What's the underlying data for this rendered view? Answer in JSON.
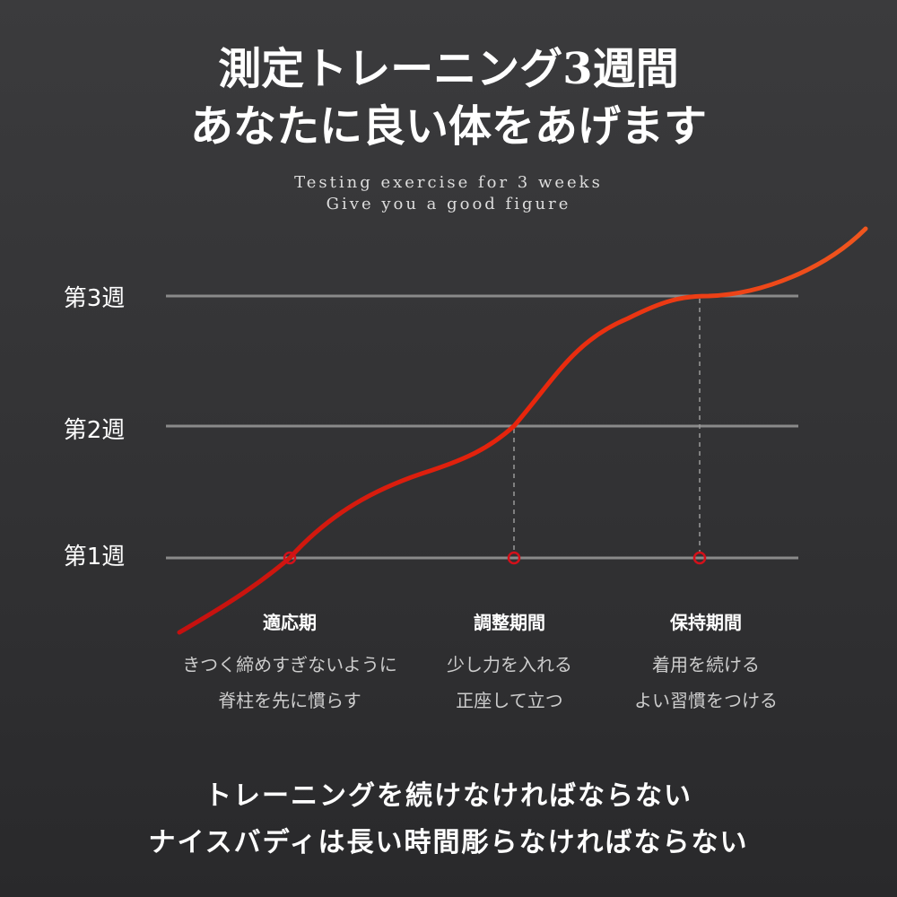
{
  "header": {
    "title_lines": [
      "測定トレーニング3週間",
      "あなたに良い体をあげます"
    ],
    "subtitle_lines": [
      "Testing exercise for 3 weeks",
      "Give you a good figure"
    ]
  },
  "weeks": [
    "第3週",
    "第2週",
    "第1週"
  ],
  "phases": [
    {
      "name": "適応期",
      "lines": [
        "きつく締めすぎないように",
        "脊柱を先に慣らす"
      ]
    },
    {
      "name": "調整期間",
      "lines": [
        "少し力を入れる",
        "正座して立つ"
      ]
    },
    {
      "name": "保持期間",
      "lines": [
        "着用を続ける",
        "よい習慣をつける"
      ]
    }
  ],
  "footer": {
    "lines": [
      "トレーニングを続けなければならない",
      "ナイスバディは長い時間彫らなければならない"
    ]
  }
}
